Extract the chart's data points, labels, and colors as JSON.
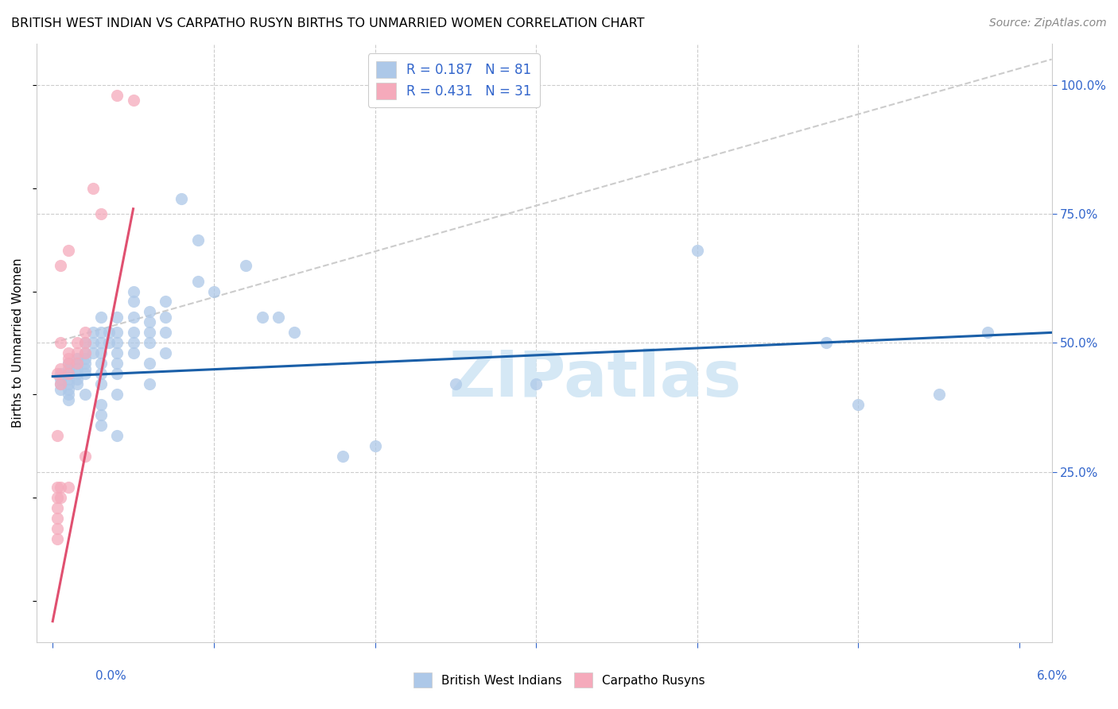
{
  "title": "BRITISH WEST INDIAN VS CARPATHO RUSYN BIRTHS TO UNMARRIED WOMEN CORRELATION CHART",
  "source": "Source: ZipAtlas.com",
  "ylabel": "Births to Unmarried Women",
  "yticks": [
    "25.0%",
    "50.0%",
    "75.0%",
    "100.0%"
  ],
  "ytick_vals": [
    0.25,
    0.5,
    0.75,
    1.0
  ],
  "xlim": [
    -0.001,
    0.062
  ],
  "ylim": [
    -0.08,
    1.08
  ],
  "legend_line1": "R = 0.187   N = 81",
  "legend_line2": "R = 0.431   N = 31",
  "blue_color": "#adc8e8",
  "pink_color": "#f5aabb",
  "blue_line_color": "#1a5fa8",
  "pink_line_color": "#e05070",
  "legend_text_color": "#3366cc",
  "watermark_color": "#d5e8f5",
  "blue_scatter": [
    [
      0.0005,
      0.44
    ],
    [
      0.0005,
      0.43
    ],
    [
      0.0005,
      0.42
    ],
    [
      0.0005,
      0.41
    ],
    [
      0.001,
      0.46
    ],
    [
      0.001,
      0.45
    ],
    [
      0.001,
      0.44
    ],
    [
      0.001,
      0.43
    ],
    [
      0.001,
      0.42
    ],
    [
      0.001,
      0.41
    ],
    [
      0.001,
      0.4
    ],
    [
      0.001,
      0.39
    ],
    [
      0.0015,
      0.47
    ],
    [
      0.0015,
      0.46
    ],
    [
      0.0015,
      0.45
    ],
    [
      0.0015,
      0.44
    ],
    [
      0.0015,
      0.43
    ],
    [
      0.0015,
      0.42
    ],
    [
      0.002,
      0.5
    ],
    [
      0.002,
      0.48
    ],
    [
      0.002,
      0.47
    ],
    [
      0.002,
      0.46
    ],
    [
      0.002,
      0.45
    ],
    [
      0.002,
      0.44
    ],
    [
      0.002,
      0.4
    ],
    [
      0.0025,
      0.52
    ],
    [
      0.0025,
      0.5
    ],
    [
      0.0025,
      0.48
    ],
    [
      0.003,
      0.55
    ],
    [
      0.003,
      0.52
    ],
    [
      0.003,
      0.5
    ],
    [
      0.003,
      0.48
    ],
    [
      0.003,
      0.46
    ],
    [
      0.003,
      0.44
    ],
    [
      0.003,
      0.42
    ],
    [
      0.003,
      0.38
    ],
    [
      0.003,
      0.36
    ],
    [
      0.003,
      0.34
    ],
    [
      0.0035,
      0.52
    ],
    [
      0.0035,
      0.5
    ],
    [
      0.004,
      0.55
    ],
    [
      0.004,
      0.52
    ],
    [
      0.004,
      0.5
    ],
    [
      0.004,
      0.48
    ],
    [
      0.004,
      0.46
    ],
    [
      0.004,
      0.44
    ],
    [
      0.004,
      0.4
    ],
    [
      0.004,
      0.32
    ],
    [
      0.005,
      0.6
    ],
    [
      0.005,
      0.58
    ],
    [
      0.005,
      0.55
    ],
    [
      0.005,
      0.52
    ],
    [
      0.005,
      0.5
    ],
    [
      0.005,
      0.48
    ],
    [
      0.006,
      0.56
    ],
    [
      0.006,
      0.54
    ],
    [
      0.006,
      0.52
    ],
    [
      0.006,
      0.5
    ],
    [
      0.006,
      0.46
    ],
    [
      0.006,
      0.42
    ],
    [
      0.007,
      0.58
    ],
    [
      0.007,
      0.55
    ],
    [
      0.007,
      0.52
    ],
    [
      0.007,
      0.48
    ],
    [
      0.008,
      0.78
    ],
    [
      0.009,
      0.7
    ],
    [
      0.009,
      0.62
    ],
    [
      0.01,
      0.6
    ],
    [
      0.012,
      0.65
    ],
    [
      0.013,
      0.55
    ],
    [
      0.014,
      0.55
    ],
    [
      0.015,
      0.52
    ],
    [
      0.018,
      0.28
    ],
    [
      0.02,
      0.3
    ],
    [
      0.025,
      0.42
    ],
    [
      0.03,
      0.42
    ],
    [
      0.04,
      0.68
    ],
    [
      0.048,
      0.5
    ],
    [
      0.05,
      0.38
    ],
    [
      0.055,
      0.4
    ],
    [
      0.058,
      0.52
    ]
  ],
  "pink_scatter": [
    [
      0.0003,
      0.44
    ],
    [
      0.0003,
      0.32
    ],
    [
      0.0003,
      0.22
    ],
    [
      0.0003,
      0.2
    ],
    [
      0.0003,
      0.18
    ],
    [
      0.0003,
      0.16
    ],
    [
      0.0003,
      0.14
    ],
    [
      0.0003,
      0.12
    ],
    [
      0.0005,
      0.65
    ],
    [
      0.0005,
      0.5
    ],
    [
      0.0005,
      0.45
    ],
    [
      0.0005,
      0.42
    ],
    [
      0.0005,
      0.22
    ],
    [
      0.0005,
      0.2
    ],
    [
      0.001,
      0.68
    ],
    [
      0.001,
      0.48
    ],
    [
      0.001,
      0.47
    ],
    [
      0.001,
      0.46
    ],
    [
      0.001,
      0.44
    ],
    [
      0.001,
      0.22
    ],
    [
      0.0015,
      0.5
    ],
    [
      0.0015,
      0.48
    ],
    [
      0.0015,
      0.46
    ],
    [
      0.002,
      0.52
    ],
    [
      0.002,
      0.5
    ],
    [
      0.002,
      0.48
    ],
    [
      0.002,
      0.28
    ],
    [
      0.0025,
      0.8
    ],
    [
      0.003,
      0.75
    ],
    [
      0.004,
      0.98
    ],
    [
      0.005,
      0.97
    ]
  ],
  "blue_trendline_x": [
    0.0,
    0.062
  ],
  "blue_trendline_y": [
    0.435,
    0.52
  ],
  "pink_trendline_x": [
    0.0,
    0.005
  ],
  "pink_trendline_y": [
    -0.04,
    0.76
  ],
  "diag_line_x": [
    0.0,
    0.062
  ],
  "diag_line_y": [
    0.5,
    1.05
  ]
}
